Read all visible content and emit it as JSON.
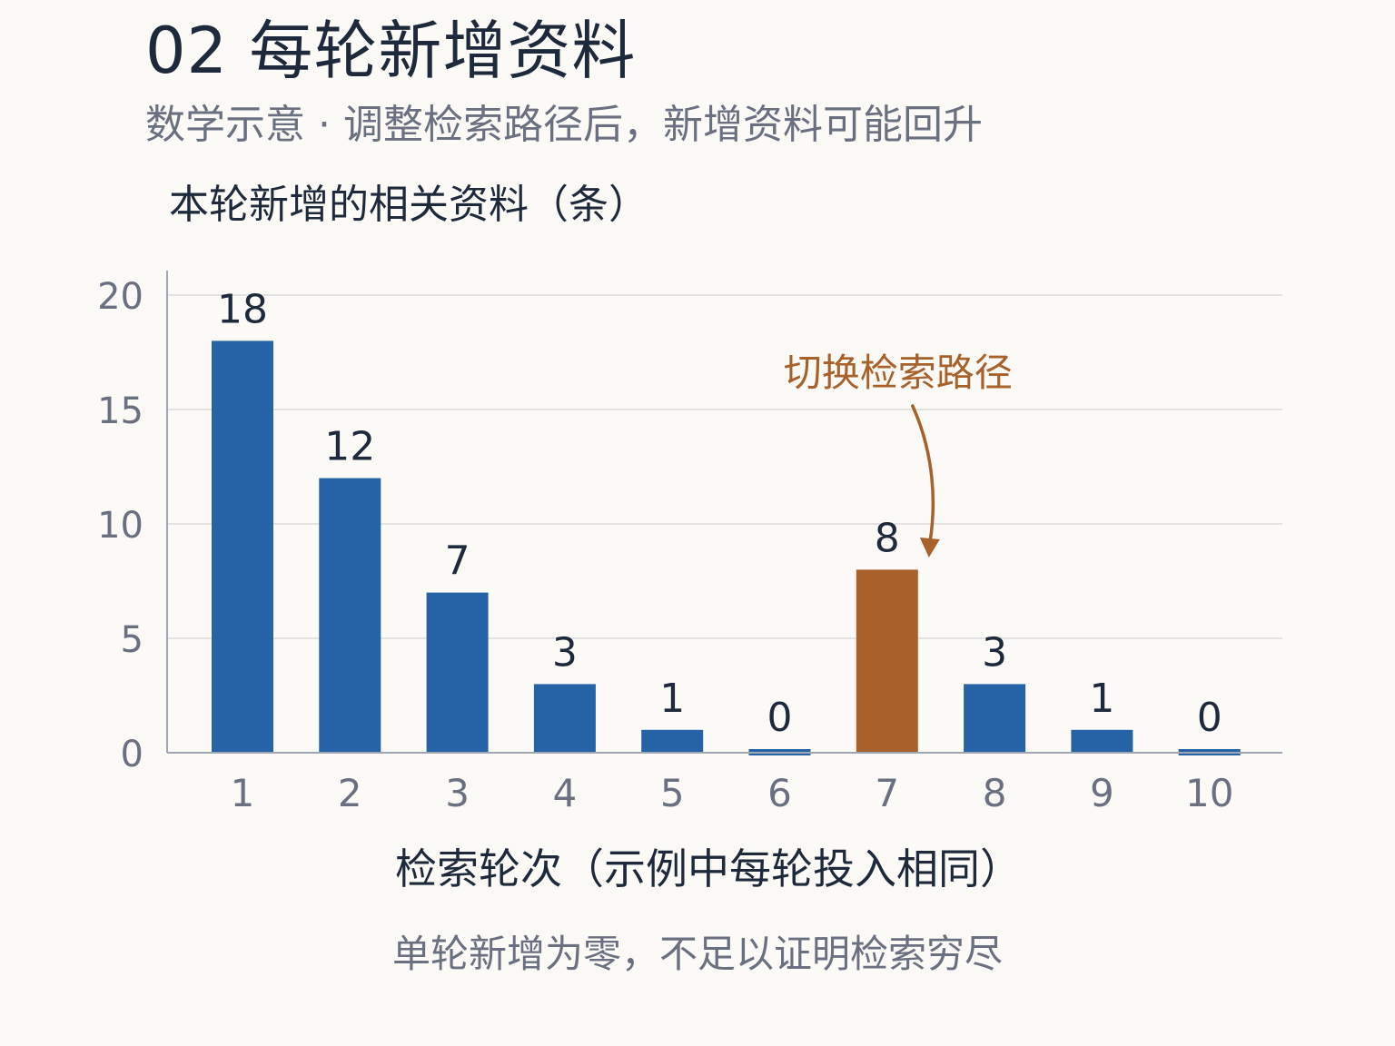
{
  "header": {
    "title": "02  每轮新增资料",
    "subtitle": "数学示意 · 调整检索路径后，新增资料可能回升"
  },
  "footnote": "单轮新增为零，不足以证明检索穷尽",
  "colors": {
    "bar": "#2563a6",
    "highlight": "#a9612b",
    "text": "#1e2a3b",
    "muted": "#6a7080",
    "grid": "#e3e3e3",
    "axis": "#a0a6b4",
    "background": "#fbfaf6"
  },
  "chart_data": {
    "type": "bar",
    "title": "",
    "xlabel": "检索轮次（示例中每轮投入相同）",
    "ylabel": "本轮新增的相关资料（条）",
    "categories": [
      "1",
      "2",
      "3",
      "4",
      "5",
      "6",
      "7",
      "8",
      "9",
      "10"
    ],
    "values": [
      18,
      12,
      7,
      3,
      1,
      0,
      8,
      3,
      1,
      0
    ],
    "data_labels": [
      "18",
      "12",
      "7",
      "3",
      "1",
      "0",
      "8",
      "3",
      "1",
      "0"
    ],
    "highlight_category": "7",
    "ylim": [
      0,
      20
    ],
    "yticks": [
      0,
      5,
      10,
      15,
      20
    ],
    "grid": true,
    "legend": "none",
    "annotation": {
      "text": "切换检索路径",
      "target_category": "7"
    }
  }
}
